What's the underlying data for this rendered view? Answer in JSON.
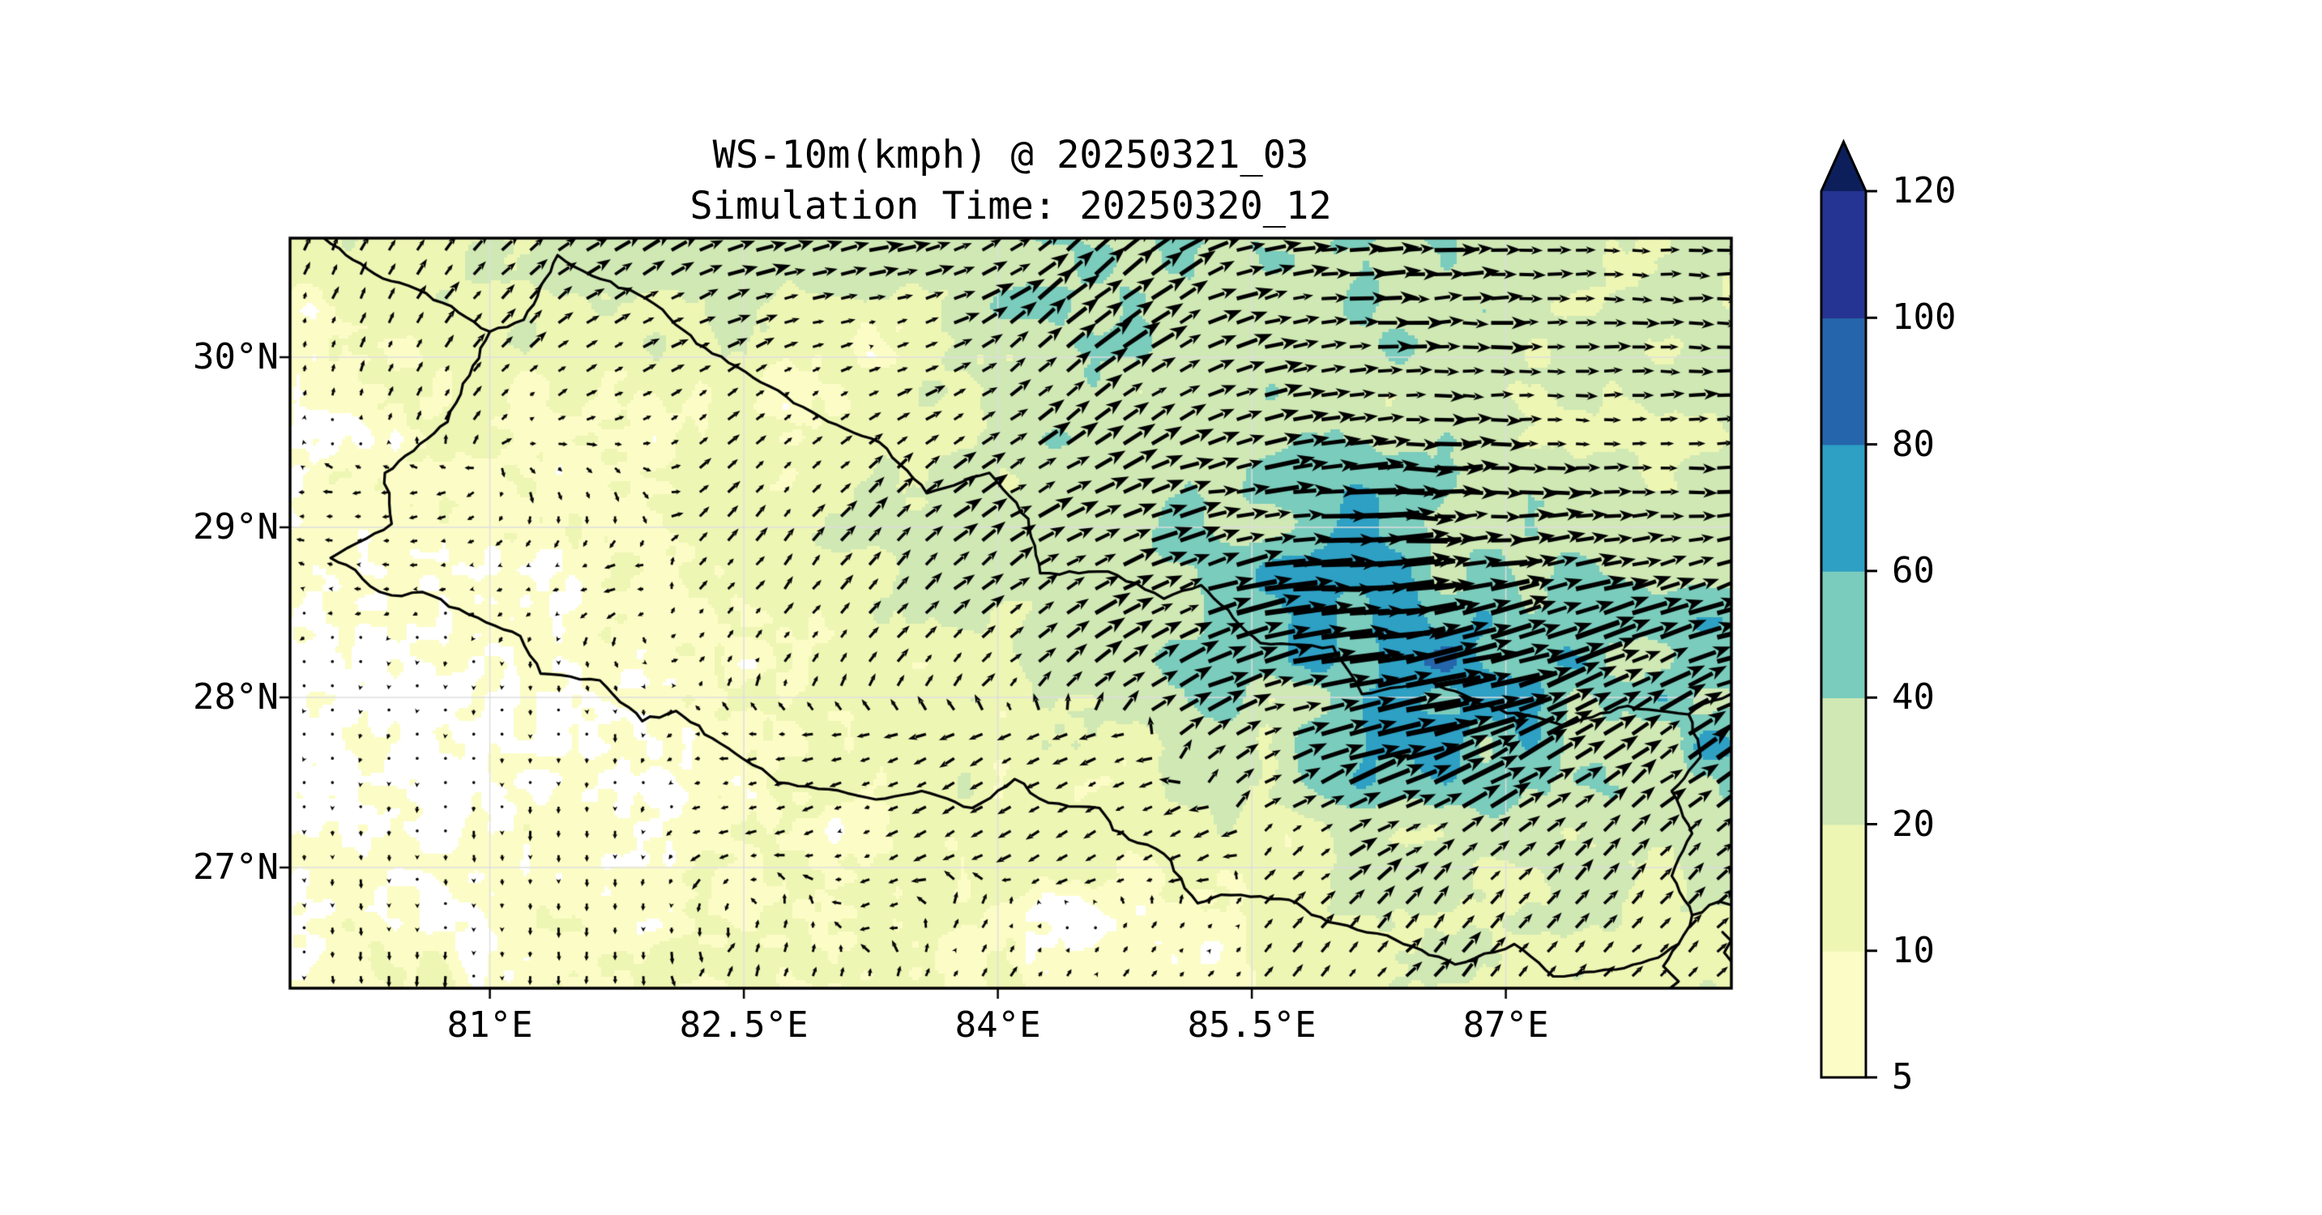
{
  "title": {
    "line1": "WS-10m(kmph) @ 20250321_03",
    "line2": "Simulation Time: 20250320_12"
  },
  "axes": {
    "lon_min": 79.82,
    "lon_max": 88.33,
    "lat_min": 26.29,
    "lat_max": 30.7,
    "x_ticks": [
      {
        "value": 81,
        "label": "81°E"
      },
      {
        "value": 82.5,
        "label": "82.5°E"
      },
      {
        "value": 84,
        "label": "84°E"
      },
      {
        "value": 85.5,
        "label": "85.5°E"
      },
      {
        "value": 87,
        "label": "87°E"
      }
    ],
    "y_ticks": [
      {
        "value": 30,
        "label": "30°N"
      },
      {
        "value": 29,
        "label": "29°N"
      },
      {
        "value": 28,
        "label": "28°N"
      },
      {
        "value": 27,
        "label": "27°N"
      }
    ]
  },
  "colorbar": {
    "levels": [
      5,
      10,
      20,
      40,
      60,
      80,
      100,
      120
    ],
    "tick_labels": [
      "5",
      "10",
      "20",
      "40",
      "60",
      "80",
      "100",
      "120"
    ],
    "colors": [
      "#fcfdc6",
      "#eef6b4",
      "#cfe8b4",
      "#7accbc",
      "#2da0c4",
      "#2565ab",
      "#253493"
    ],
    "extend_color": "#0d1f5a",
    "under_color": "#ffffff",
    "outline_color": "#000000"
  },
  "map": {
    "grid_color": "#dedede",
    "boundary_color": "#000000",
    "boundary_main": [
      [
        80.06,
        28.82
      ],
      [
        80.42,
        29.02
      ],
      [
        80.38,
        29.32
      ],
      [
        80.55,
        29.45
      ],
      [
        80.75,
        29.62
      ],
      [
        80.9,
        29.95
      ],
      [
        81.0,
        30.15
      ],
      [
        81.2,
        30.22
      ],
      [
        81.4,
        30.6
      ],
      [
        81.6,
        30.48
      ],
      [
        81.82,
        30.4
      ],
      [
        82.02,
        30.28
      ],
      [
        82.22,
        30.08
      ],
      [
        82.65,
        29.83
      ],
      [
        83.0,
        29.62
      ],
      [
        83.3,
        29.5
      ],
      [
        83.58,
        29.2
      ],
      [
        83.95,
        29.32
      ],
      [
        84.18,
        29.05
      ],
      [
        84.25,
        28.73
      ],
      [
        84.65,
        28.74
      ],
      [
        84.98,
        28.58
      ],
      [
        85.2,
        28.66
      ],
      [
        85.55,
        28.32
      ],
      [
        85.98,
        28.3
      ],
      [
        86.15,
        28.02
      ],
      [
        86.55,
        28.1
      ],
      [
        86.9,
        27.95
      ],
      [
        87.35,
        27.83
      ],
      [
        87.72,
        27.95
      ],
      [
        88.08,
        27.9
      ],
      [
        88.15,
        27.65
      ],
      [
        87.98,
        27.45
      ],
      [
        88.1,
        27.2
      ],
      [
        87.98,
        26.95
      ],
      [
        88.1,
        26.72
      ],
      [
        88.02,
        26.55
      ],
      [
        87.9,
        26.47
      ],
      [
        87.65,
        26.4
      ],
      [
        87.28,
        26.36
      ],
      [
        87.05,
        26.55
      ],
      [
        86.7,
        26.43
      ],
      [
        86.3,
        26.6
      ],
      [
        85.95,
        26.68
      ],
      [
        85.72,
        26.81
      ],
      [
        85.32,
        26.84
      ],
      [
        85.18,
        26.79
      ],
      [
        84.98,
        27.08
      ],
      [
        84.68,
        27.22
      ],
      [
        84.6,
        27.35
      ],
      [
        84.3,
        27.38
      ],
      [
        84.1,
        27.52
      ],
      [
        83.85,
        27.35
      ],
      [
        83.55,
        27.45
      ],
      [
        83.28,
        27.4
      ],
      [
        83.0,
        27.46
      ],
      [
        82.7,
        27.5
      ],
      [
        82.45,
        27.67
      ],
      [
        82.1,
        27.92
      ],
      [
        81.9,
        27.86
      ],
      [
        81.65,
        28.1
      ],
      [
        81.3,
        28.14
      ],
      [
        81.18,
        28.36
      ],
      [
        80.98,
        28.44
      ],
      [
        80.6,
        28.62
      ],
      [
        80.42,
        28.6
      ],
      [
        80.35,
        28.62
      ],
      [
        80.15,
        28.78
      ],
      [
        80.06,
        28.82
      ]
    ],
    "boundary_segments": [
      [
        [
          80.02,
          30.7
        ],
        [
          80.15,
          30.6
        ],
        [
          80.32,
          30.49
        ],
        [
          80.52,
          30.42
        ],
        [
          80.72,
          30.32
        ],
        [
          81.0,
          30.15
        ]
      ],
      [
        [
          88.08,
          27.9
        ],
        [
          88.22,
          27.98
        ],
        [
          88.33,
          28.02
        ]
      ],
      [
        [
          88.02,
          26.55
        ],
        [
          87.93,
          26.42
        ],
        [
          88.02,
          26.33
        ],
        [
          87.97,
          26.29
        ]
      ],
      [
        [
          88.1,
          26.72
        ],
        [
          88.26,
          26.8
        ],
        [
          88.33,
          26.78
        ]
      ],
      [
        [
          88.28,
          26.62
        ],
        [
          88.33,
          26.57
        ],
        [
          88.29,
          26.5
        ],
        [
          88.33,
          26.45
        ]
      ]
    ]
  },
  "chart_data": {
    "type": "heatmap",
    "subtype": "contourf+quiver",
    "title": "WS-10m(kmph) @ 20250321_03",
    "subtitle": "Simulation Time: 20250320_12",
    "xlabel": "",
    "ylabel": "",
    "x_range": [
      79.82,
      88.33
    ],
    "y_range": [
      26.29,
      30.7
    ],
    "levels": [
      5,
      10,
      20,
      40,
      60,
      80,
      100,
      120
    ],
    "colormap": "YlGnBu",
    "legend_position": "right",
    "grid_on": true,
    "grid_lons": [
      79.8,
      80.3,
      80.8,
      81.3,
      81.8,
      82.3,
      82.8,
      83.3,
      83.8,
      84.3,
      84.8,
      85.3,
      85.8,
      86.3,
      86.8,
      87.3,
      87.8,
      88.3
    ],
    "grid_lats": [
      30.7,
      30.2,
      29.7,
      29.2,
      28.7,
      28.2,
      27.7,
      27.2,
      26.7,
      26.2
    ],
    "wind_speed_kmph": [
      [
        14,
        16,
        18,
        22,
        26,
        28,
        30,
        30,
        34,
        46,
        42,
        32,
        34,
        44,
        30,
        26,
        24,
        22
      ],
      [
        10,
        12,
        14,
        16,
        20,
        22,
        12,
        9,
        28,
        34,
        30,
        28,
        28,
        34,
        30,
        28,
        26,
        24
      ],
      [
        7,
        9,
        11,
        9,
        11,
        13,
        9,
        12,
        24,
        28,
        30,
        28,
        32,
        30,
        28,
        26,
        25,
        24
      ],
      [
        6,
        7,
        8,
        9,
        10,
        13,
        16,
        20,
        26,
        28,
        30,
        34,
        45,
        42,
        32,
        30,
        28,
        26
      ],
      [
        5,
        6,
        6,
        7,
        9,
        10,
        13,
        17,
        24,
        28,
        32,
        42,
        52,
        55,
        45,
        35,
        30,
        30
      ],
      [
        3,
        4,
        4,
        5,
        6,
        8,
        12,
        15,
        18,
        24,
        30,
        45,
        55,
        65,
        72,
        60,
        45,
        55
      ],
      [
        3,
        4,
        4,
        5,
        6,
        8,
        10,
        12,
        15,
        18,
        15,
        26,
        48,
        58,
        52,
        42,
        38,
        65
      ],
      [
        4,
        5,
        5,
        6,
        6,
        8,
        8,
        10,
        12,
        14,
        15,
        18,
        25,
        30,
        28,
        24,
        20,
        26
      ],
      [
        6,
        7,
        7,
        8,
        8,
        8,
        10,
        10,
        12,
        3,
        4,
        8,
        15,
        18,
        20,
        18,
        16,
        18
      ],
      [
        8,
        9,
        10,
        10,
        10,
        10,
        12,
        12,
        12,
        8,
        8,
        10,
        14,
        16,
        18,
        16,
        15,
        16
      ]
    ],
    "wind_dir_toward_deg": [
      [
        70,
        60,
        50,
        40,
        30,
        22,
        15,
        12,
        25,
        40,
        35,
        20,
        8,
        2,
        0,
        0,
        0,
        0
      ],
      [
        72,
        65,
        55,
        42,
        30,
        20,
        14,
        10,
        28,
        42,
        38,
        22,
        10,
        4,
        0,
        0,
        0,
        0
      ],
      [
        78,
        70,
        55,
        35,
        25,
        40,
        40,
        32,
        30,
        40,
        35,
        25,
        12,
        5,
        0,
        0,
        0,
        0
      ],
      [
        178,
        186,
        196,
        -72,
        -68,
        45,
        48,
        42,
        36,
        30,
        20,
        10,
        4,
        0,
        0,
        0,
        0,
        2
      ],
      [
        150,
        175,
        190,
        198,
        190,
        48,
        52,
        46,
        40,
        34,
        26,
        16,
        6,
        2,
        8,
        12,
        16,
        20
      ],
      [
        -120,
        -100,
        -95,
        -92,
        -60,
        55,
        55,
        50,
        45,
        40,
        32,
        22,
        12,
        6,
        14,
        20,
        26,
        18
      ],
      [
        -120,
        -110,
        -100,
        -95,
        -90,
        185,
        192,
        200,
        210,
        206,
        198,
        35,
        22,
        12,
        24,
        32,
        38,
        28
      ],
      [
        -85,
        -86,
        -88,
        -90,
        -92,
        195,
        198,
        206,
        212,
        215,
        210,
        205,
        35,
        28,
        36,
        42,
        46,
        40
      ],
      [
        -85,
        -88,
        -90,
        -92,
        -94,
        -96,
        80,
        210,
        60,
        58,
        55,
        50,
        45,
        48,
        52,
        48,
        46,
        45
      ],
      [
        -85,
        -88,
        -90,
        -90,
        -92,
        75,
        72,
        68,
        62,
        58,
        54,
        50,
        46,
        46,
        50,
        46,
        45,
        44
      ]
    ]
  }
}
